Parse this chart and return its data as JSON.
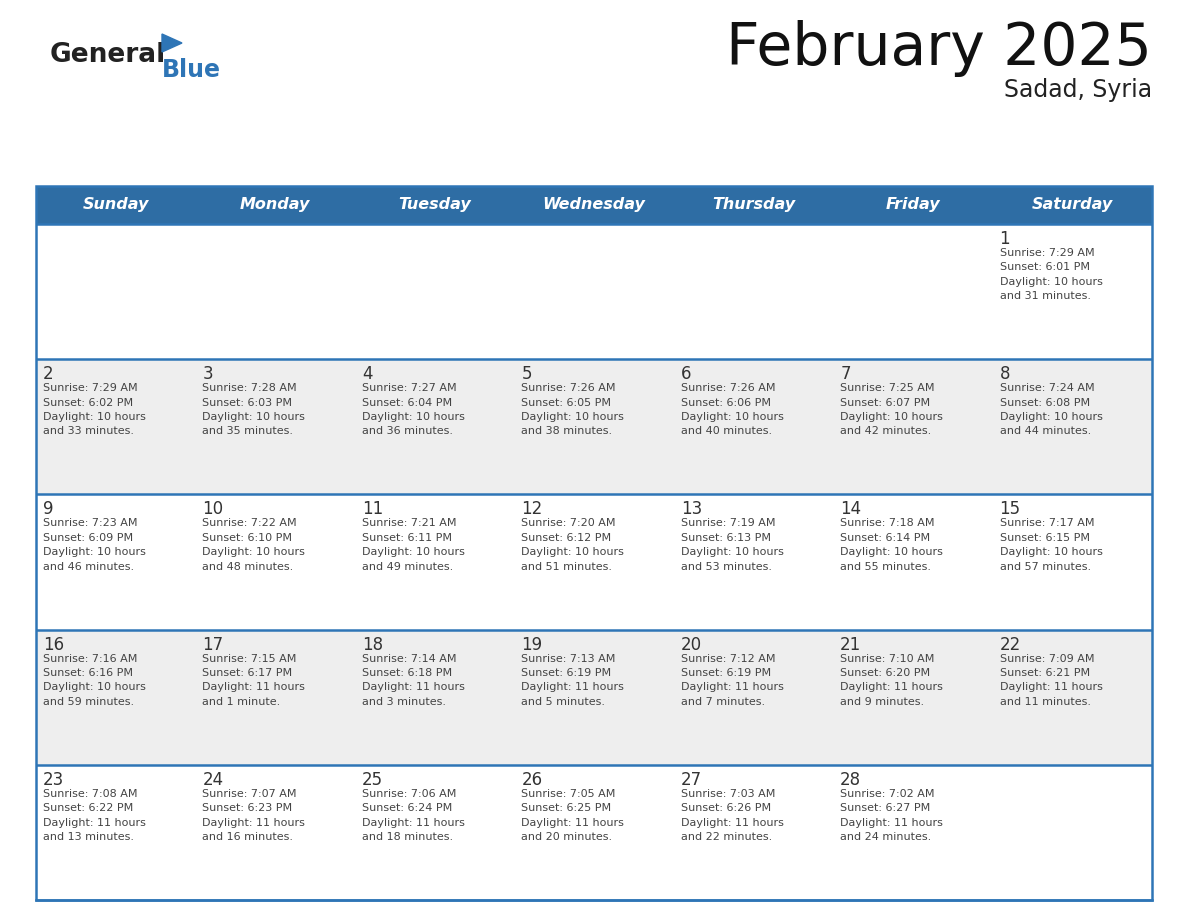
{
  "title": "February 2025",
  "subtitle": "Sadad, Syria",
  "header_bg": "#2E6DA4",
  "header_text_color": "#FFFFFF",
  "day_names": [
    "Sunday",
    "Monday",
    "Tuesday",
    "Wednesday",
    "Thursday",
    "Friday",
    "Saturday"
  ],
  "row_bg": [
    "#FFFFFF",
    "#EEEEEE",
    "#FFFFFF",
    "#EEEEEE",
    "#FFFFFF"
  ],
  "cell_border_color": "#2E75B6",
  "date_color": "#333333",
  "info_color": "#444444",
  "calendar": [
    [
      {
        "day": null,
        "info": null
      },
      {
        "day": null,
        "info": null
      },
      {
        "day": null,
        "info": null
      },
      {
        "day": null,
        "info": null
      },
      {
        "day": null,
        "info": null
      },
      {
        "day": null,
        "info": null
      },
      {
        "day": "1",
        "info": "Sunrise: 7:29 AM\nSunset: 6:01 PM\nDaylight: 10 hours\nand 31 minutes."
      }
    ],
    [
      {
        "day": "2",
        "info": "Sunrise: 7:29 AM\nSunset: 6:02 PM\nDaylight: 10 hours\nand 33 minutes."
      },
      {
        "day": "3",
        "info": "Sunrise: 7:28 AM\nSunset: 6:03 PM\nDaylight: 10 hours\nand 35 minutes."
      },
      {
        "day": "4",
        "info": "Sunrise: 7:27 AM\nSunset: 6:04 PM\nDaylight: 10 hours\nand 36 minutes."
      },
      {
        "day": "5",
        "info": "Sunrise: 7:26 AM\nSunset: 6:05 PM\nDaylight: 10 hours\nand 38 minutes."
      },
      {
        "day": "6",
        "info": "Sunrise: 7:26 AM\nSunset: 6:06 PM\nDaylight: 10 hours\nand 40 minutes."
      },
      {
        "day": "7",
        "info": "Sunrise: 7:25 AM\nSunset: 6:07 PM\nDaylight: 10 hours\nand 42 minutes."
      },
      {
        "day": "8",
        "info": "Sunrise: 7:24 AM\nSunset: 6:08 PM\nDaylight: 10 hours\nand 44 minutes."
      }
    ],
    [
      {
        "day": "9",
        "info": "Sunrise: 7:23 AM\nSunset: 6:09 PM\nDaylight: 10 hours\nand 46 minutes."
      },
      {
        "day": "10",
        "info": "Sunrise: 7:22 AM\nSunset: 6:10 PM\nDaylight: 10 hours\nand 48 minutes."
      },
      {
        "day": "11",
        "info": "Sunrise: 7:21 AM\nSunset: 6:11 PM\nDaylight: 10 hours\nand 49 minutes."
      },
      {
        "day": "12",
        "info": "Sunrise: 7:20 AM\nSunset: 6:12 PM\nDaylight: 10 hours\nand 51 minutes."
      },
      {
        "day": "13",
        "info": "Sunrise: 7:19 AM\nSunset: 6:13 PM\nDaylight: 10 hours\nand 53 minutes."
      },
      {
        "day": "14",
        "info": "Sunrise: 7:18 AM\nSunset: 6:14 PM\nDaylight: 10 hours\nand 55 minutes."
      },
      {
        "day": "15",
        "info": "Sunrise: 7:17 AM\nSunset: 6:15 PM\nDaylight: 10 hours\nand 57 minutes."
      }
    ],
    [
      {
        "day": "16",
        "info": "Sunrise: 7:16 AM\nSunset: 6:16 PM\nDaylight: 10 hours\nand 59 minutes."
      },
      {
        "day": "17",
        "info": "Sunrise: 7:15 AM\nSunset: 6:17 PM\nDaylight: 11 hours\nand 1 minute."
      },
      {
        "day": "18",
        "info": "Sunrise: 7:14 AM\nSunset: 6:18 PM\nDaylight: 11 hours\nand 3 minutes."
      },
      {
        "day": "19",
        "info": "Sunrise: 7:13 AM\nSunset: 6:19 PM\nDaylight: 11 hours\nand 5 minutes."
      },
      {
        "day": "20",
        "info": "Sunrise: 7:12 AM\nSunset: 6:19 PM\nDaylight: 11 hours\nand 7 minutes."
      },
      {
        "day": "21",
        "info": "Sunrise: 7:10 AM\nSunset: 6:20 PM\nDaylight: 11 hours\nand 9 minutes."
      },
      {
        "day": "22",
        "info": "Sunrise: 7:09 AM\nSunset: 6:21 PM\nDaylight: 11 hours\nand 11 minutes."
      }
    ],
    [
      {
        "day": "23",
        "info": "Sunrise: 7:08 AM\nSunset: 6:22 PM\nDaylight: 11 hours\nand 13 minutes."
      },
      {
        "day": "24",
        "info": "Sunrise: 7:07 AM\nSunset: 6:23 PM\nDaylight: 11 hours\nand 16 minutes."
      },
      {
        "day": "25",
        "info": "Sunrise: 7:06 AM\nSunset: 6:24 PM\nDaylight: 11 hours\nand 18 minutes."
      },
      {
        "day": "26",
        "info": "Sunrise: 7:05 AM\nSunset: 6:25 PM\nDaylight: 11 hours\nand 20 minutes."
      },
      {
        "day": "27",
        "info": "Sunrise: 7:03 AM\nSunset: 6:26 PM\nDaylight: 11 hours\nand 22 minutes."
      },
      {
        "day": "28",
        "info": "Sunrise: 7:02 AM\nSunset: 6:27 PM\nDaylight: 11 hours\nand 24 minutes."
      },
      {
        "day": null,
        "info": null
      }
    ]
  ],
  "logo_general_color": "#222222",
  "logo_blue_color": "#2E75B6",
  "fig_bg": "#FFFFFF",
  "fig_width": 11.88,
  "fig_height": 9.18,
  "fig_dpi": 100
}
